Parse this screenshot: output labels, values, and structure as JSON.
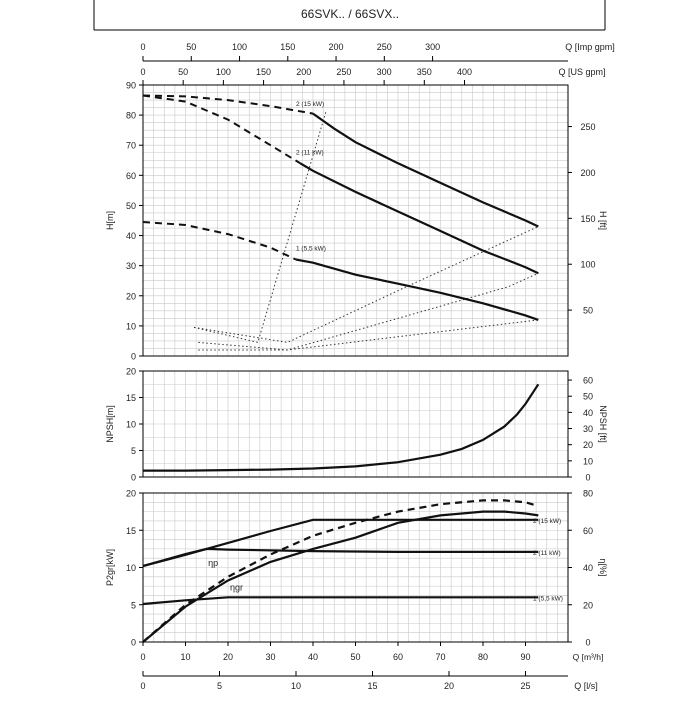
{
  "header": {
    "title": "66SVK.. / 66SVX.."
  },
  "chart_data": [
    {
      "type": "line",
      "title": "",
      "top_axis_imp": {
        "label": "Q [Imp gpm]",
        "ticks": [
          0,
          50,
          100,
          150,
          200,
          250,
          300
        ]
      },
      "top_axis_us": {
        "label": "Q [US gpm]",
        "ticks": [
          0,
          50,
          100,
          150,
          200,
          250,
          300,
          350,
          400
        ]
      },
      "ylabel": "H[m]",
      "ylim": [
        0,
        90
      ],
      "yticks": [
        0,
        10,
        20,
        30,
        40,
        50,
        60,
        70,
        80,
        90
      ],
      "ylabel_right": "H [ft]",
      "yticks_right": [
        50,
        100,
        150,
        200,
        250
      ],
      "grid": true,
      "series": [
        {
          "name": "2 (15 kW)",
          "dash_to": 40,
          "x": [
            0,
            10,
            20,
            30,
            40,
            45,
            50,
            60,
            70,
            80,
            90,
            93
          ],
          "y": [
            86.5,
            86.2,
            85,
            83,
            80.5,
            75.5,
            71,
            64,
            57.5,
            51,
            45,
            43
          ]
        },
        {
          "name": "2 (11 kW)",
          "dash_to": 37,
          "x": [
            0,
            10,
            20,
            30,
            37,
            40,
            50,
            60,
            70,
            80,
            90,
            93
          ],
          "y": [
            86.5,
            84.5,
            78.5,
            70,
            64,
            61.5,
            54.5,
            48,
            41.5,
            35,
            29.5,
            27.5
          ]
        },
        {
          "name": "1 (5,5 kW)",
          "dash_to": 36,
          "x": [
            0,
            10,
            20,
            30,
            36,
            40,
            50,
            60,
            70,
            80,
            90,
            93
          ],
          "y": [
            44.5,
            43.5,
            40.5,
            36,
            32,
            31,
            27,
            24,
            21,
            17.5,
            13.5,
            12
          ]
        }
      ]
    },
    {
      "type": "line",
      "title": "",
      "ylabel": "NPSH[m]",
      "ylim": [
        0,
        20
      ],
      "yticks": [
        0,
        5,
        10,
        15,
        20
      ],
      "ylabel_right": "NPSH [ft]",
      "yticks_right": [
        0,
        10,
        20,
        30,
        40,
        50,
        60
      ],
      "grid": true,
      "series": [
        {
          "name": "NPSH",
          "x": [
            0,
            10,
            20,
            30,
            40,
            50,
            60,
            70,
            75,
            80,
            85,
            88,
            90,
            93
          ],
          "y": [
            1.2,
            1.2,
            1.3,
            1.4,
            1.6,
            2,
            2.8,
            4.2,
            5.3,
            7,
            9.5,
            11.8,
            13.8,
            17.5
          ]
        }
      ]
    },
    {
      "type": "line",
      "title": "",
      "ylabel": "P2gr[kW]",
      "ylim": [
        0,
        20
      ],
      "yticks": [
        0,
        5,
        10,
        15,
        20
      ],
      "ylabel_right": "η[%]",
      "yticks_right": [
        0,
        20,
        40,
        60,
        80
      ],
      "xlabel": "Q [m³/h]",
      "xlim": [
        0,
        100
      ],
      "xticks": [
        0,
        10,
        20,
        30,
        40,
        50,
        60,
        70,
        80,
        90
      ],
      "bottom_axis": {
        "label": "Q [l/s]",
        "ticks": [
          0,
          5,
          10,
          15,
          20,
          25
        ]
      },
      "annotations": [
        {
          "text": "ηp"
        },
        {
          "text": "ηgr"
        }
      ],
      "grid": true,
      "series": [
        {
          "name": "2 (15 kW)",
          "x": [
            0,
            10,
            20,
            30,
            40,
            50,
            60,
            70,
            80,
            90,
            93
          ],
          "y": [
            10.2,
            11.7,
            13.3,
            14.9,
            16.4,
            16.4,
            16.4,
            16.4,
            16.4,
            16.4,
            16.4
          ]
        },
        {
          "name": "2 (11 kW)",
          "x": [
            0,
            10,
            15,
            20,
            40,
            60,
            80,
            93
          ],
          "y": [
            10.2,
            11.8,
            12.5,
            12.4,
            12.2,
            12.1,
            12.1,
            12.1
          ]
        },
        {
          "name": "1 (5,5 kW)",
          "x": [
            0,
            10,
            20,
            40,
            60,
            80,
            93
          ],
          "y": [
            5.1,
            5.6,
            6,
            6,
            6,
            6,
            6
          ]
        },
        {
          "name": "ηgr",
          "axis": "right",
          "x": [
            0,
            10,
            20,
            30,
            40,
            50,
            60,
            70,
            80,
            85,
            90,
            93
          ],
          "y": [
            0,
            19,
            33,
            43,
            50,
            56,
            64,
            68,
            70,
            70,
            69,
            68
          ]
        },
        {
          "name": "ηp",
          "axis": "right",
          "dashed": true,
          "x": [
            0,
            10,
            20,
            30,
            40,
            50,
            60,
            70,
            80,
            85,
            90,
            93
          ],
          "y": [
            0,
            20,
            35,
            47,
            57,
            64,
            70,
            74,
            76,
            76,
            75,
            73
          ]
        }
      ]
    }
  ],
  "system_curves_dotted": [
    {
      "x": [
        12,
        27,
        43
      ],
      "y": [
        9.5,
        4.5,
        81
      ]
    },
    {
      "x": [
        12,
        34,
        62,
        93
      ],
      "y": [
        9.5,
        4.5,
        23,
        43
      ]
    },
    {
      "x": [
        13,
        34,
        86,
        93
      ],
      "y": [
        4.5,
        2,
        23,
        27.5
      ]
    },
    {
      "x": [
        13,
        34,
        93
      ],
      "y": [
        2,
        2,
        12
      ]
    }
  ]
}
